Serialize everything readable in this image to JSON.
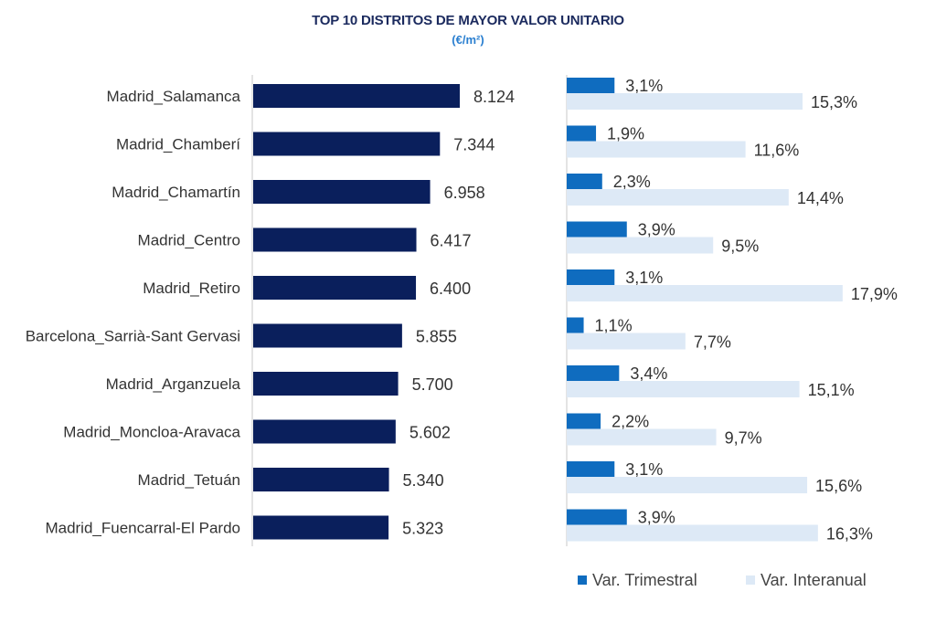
{
  "chart_data": {
    "type": "bar",
    "title": "TOP 10 DISTRITOS DE MAYOR VALOR UNITARIO",
    "subtitle": "(€/m²)",
    "categories": [
      "Madrid_Salamanca",
      "Madrid_Chamberí",
      "Madrid_Chamartín",
      "Madrid_Centro",
      "Madrid_Retiro",
      "Barcelona_Sarrià-Sant Gervasi",
      "Madrid_Arganzuela",
      "Madrid_Moncloa-Aravaca",
      "Madrid_Tetuán",
      "Madrid_Fuencarral-El Pardo"
    ],
    "values": [
      8124,
      7344,
      6958,
      6417,
      6400,
      5855,
      5700,
      5602,
      5340,
      5323
    ],
    "value_labels": [
      "8.124",
      "7.344",
      "6.958",
      "6.417",
      "6.400",
      "5.855",
      "5.700",
      "5.602",
      "5.340",
      "5.323"
    ],
    "series": [
      {
        "name": "Var. Trimestral",
        "values": [
          3.1,
          1.9,
          2.3,
          3.9,
          3.1,
          1.1,
          3.4,
          2.2,
          3.1,
          3.9
        ],
        "labels": [
          "3,1%",
          "1,9%",
          "2,3%",
          "3,9%",
          "3,1%",
          "1,1%",
          "3,4%",
          "2,2%",
          "3,1%",
          "3,9%"
        ],
        "color": "#0f6cbf"
      },
      {
        "name": "Var. Interanual",
        "values": [
          15.3,
          11.6,
          14.4,
          9.5,
          17.9,
          7.7,
          15.1,
          9.7,
          15.6,
          16.3
        ],
        "labels": [
          "15,3%",
          "11,6%",
          "14,4%",
          "9,5%",
          "17,9%",
          "7,7%",
          "15,1%",
          "9,7%",
          "15,6%",
          "16,3%"
        ],
        "color": "#dde9f6"
      }
    ],
    "value_bar_color": "#0a1f5c",
    "legend_position": "bottom-right",
    "grid": false
  }
}
